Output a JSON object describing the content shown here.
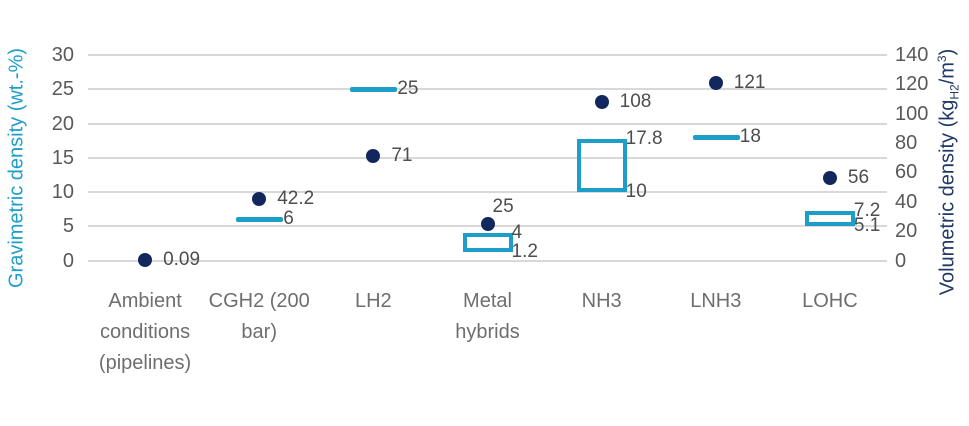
{
  "colors": {
    "teal": "#1d9ec9",
    "navy": "#12275e",
    "navy_title": "#1f3864",
    "tick_gray": "#595959",
    "category_gray": "#6e6e6e",
    "label_gray": "#4d4d4d",
    "grid_gray": "#d8d8d8"
  },
  "chart_data": {
    "type": "scatter",
    "subtype": "dual-axis combo: teal line/box range markers (left axis) + navy dot markers (right axis)",
    "title": "",
    "legend": "none",
    "grid": "horizontal",
    "left_axis": {
      "title": "Gravimetric density (wt.-%)",
      "range": [
        0,
        30
      ],
      "tick_values": [
        30,
        25,
        20,
        15,
        10,
        5,
        0
      ],
      "tick_labels": [
        "30",
        "25",
        "20",
        "15",
        "10",
        "5",
        "0"
      ]
    },
    "right_axis": {
      "title_parts": {
        "pre": "Volumetric density (kg",
        "sub": "H2",
        "mid": "/m",
        "sup": "3",
        "post": ")"
      },
      "range": [
        0,
        140
      ],
      "tick_values": [
        140,
        120,
        100,
        80,
        60,
        40,
        20,
        0
      ],
      "tick_labels": [
        "140",
        "120",
        "100",
        "80",
        "60",
        "40",
        "20",
        "0"
      ]
    },
    "series": [
      {
        "name": "Gravimetric density (wt.-%)",
        "axis": "left",
        "marker": "teal line (single value) or teal open box (range)"
      },
      {
        "name": "Volumetric density (kgH2/m3)",
        "axis": "right",
        "marker": "navy filled dot"
      }
    ],
    "categories": [
      {
        "label": "Ambient conditions (pipelines)",
        "label_lines": [
          "Ambient",
          "conditions",
          "(pipelines)"
        ],
        "volumetric": {
          "value": 0.09,
          "label": "0.09"
        },
        "gravimetric": null
      },
      {
        "label": "CGH2 (200 bar)",
        "label_lines": [
          "CGH2 (200",
          "bar)"
        ],
        "volumetric": {
          "value": 42.2,
          "label": "42.2"
        },
        "gravimetric": {
          "kind": "line",
          "value": 6,
          "label": "6"
        }
      },
      {
        "label": "LH2",
        "label_lines": [
          "LH2"
        ],
        "volumetric": {
          "value": 71,
          "label": "71"
        },
        "gravimetric": {
          "kind": "line",
          "value": 25,
          "label": "25"
        }
      },
      {
        "label": "Metal hybrids",
        "label_lines": [
          "Metal",
          "hybrids"
        ],
        "volumetric": {
          "value": 25,
          "label": "25",
          "label_pos": "above"
        },
        "gravimetric": {
          "kind": "box",
          "low": 1.2,
          "high": 4,
          "low_label": "1.2",
          "high_label": "4"
        }
      },
      {
        "label": "NH3",
        "label_lines": [
          "NH3"
        ],
        "volumetric": {
          "value": 108,
          "label": "108"
        },
        "gravimetric": {
          "kind": "box",
          "low": 10,
          "high": 17.8,
          "low_label": "10",
          "high_label": "17.8"
        }
      },
      {
        "label": "LNH3",
        "label_lines": [
          "LNH3"
        ],
        "volumetric": {
          "value": 121,
          "label": "121"
        },
        "gravimetric": {
          "kind": "line",
          "value": 18,
          "label": "18"
        }
      },
      {
        "label": "LOHC",
        "label_lines": [
          "LOHC"
        ],
        "volumetric": {
          "value": 56,
          "label": "56"
        },
        "gravimetric": {
          "kind": "box",
          "low": 5.1,
          "high": 7.2,
          "low_label": "5.1",
          "high_label": "7.2"
        }
      }
    ]
  }
}
